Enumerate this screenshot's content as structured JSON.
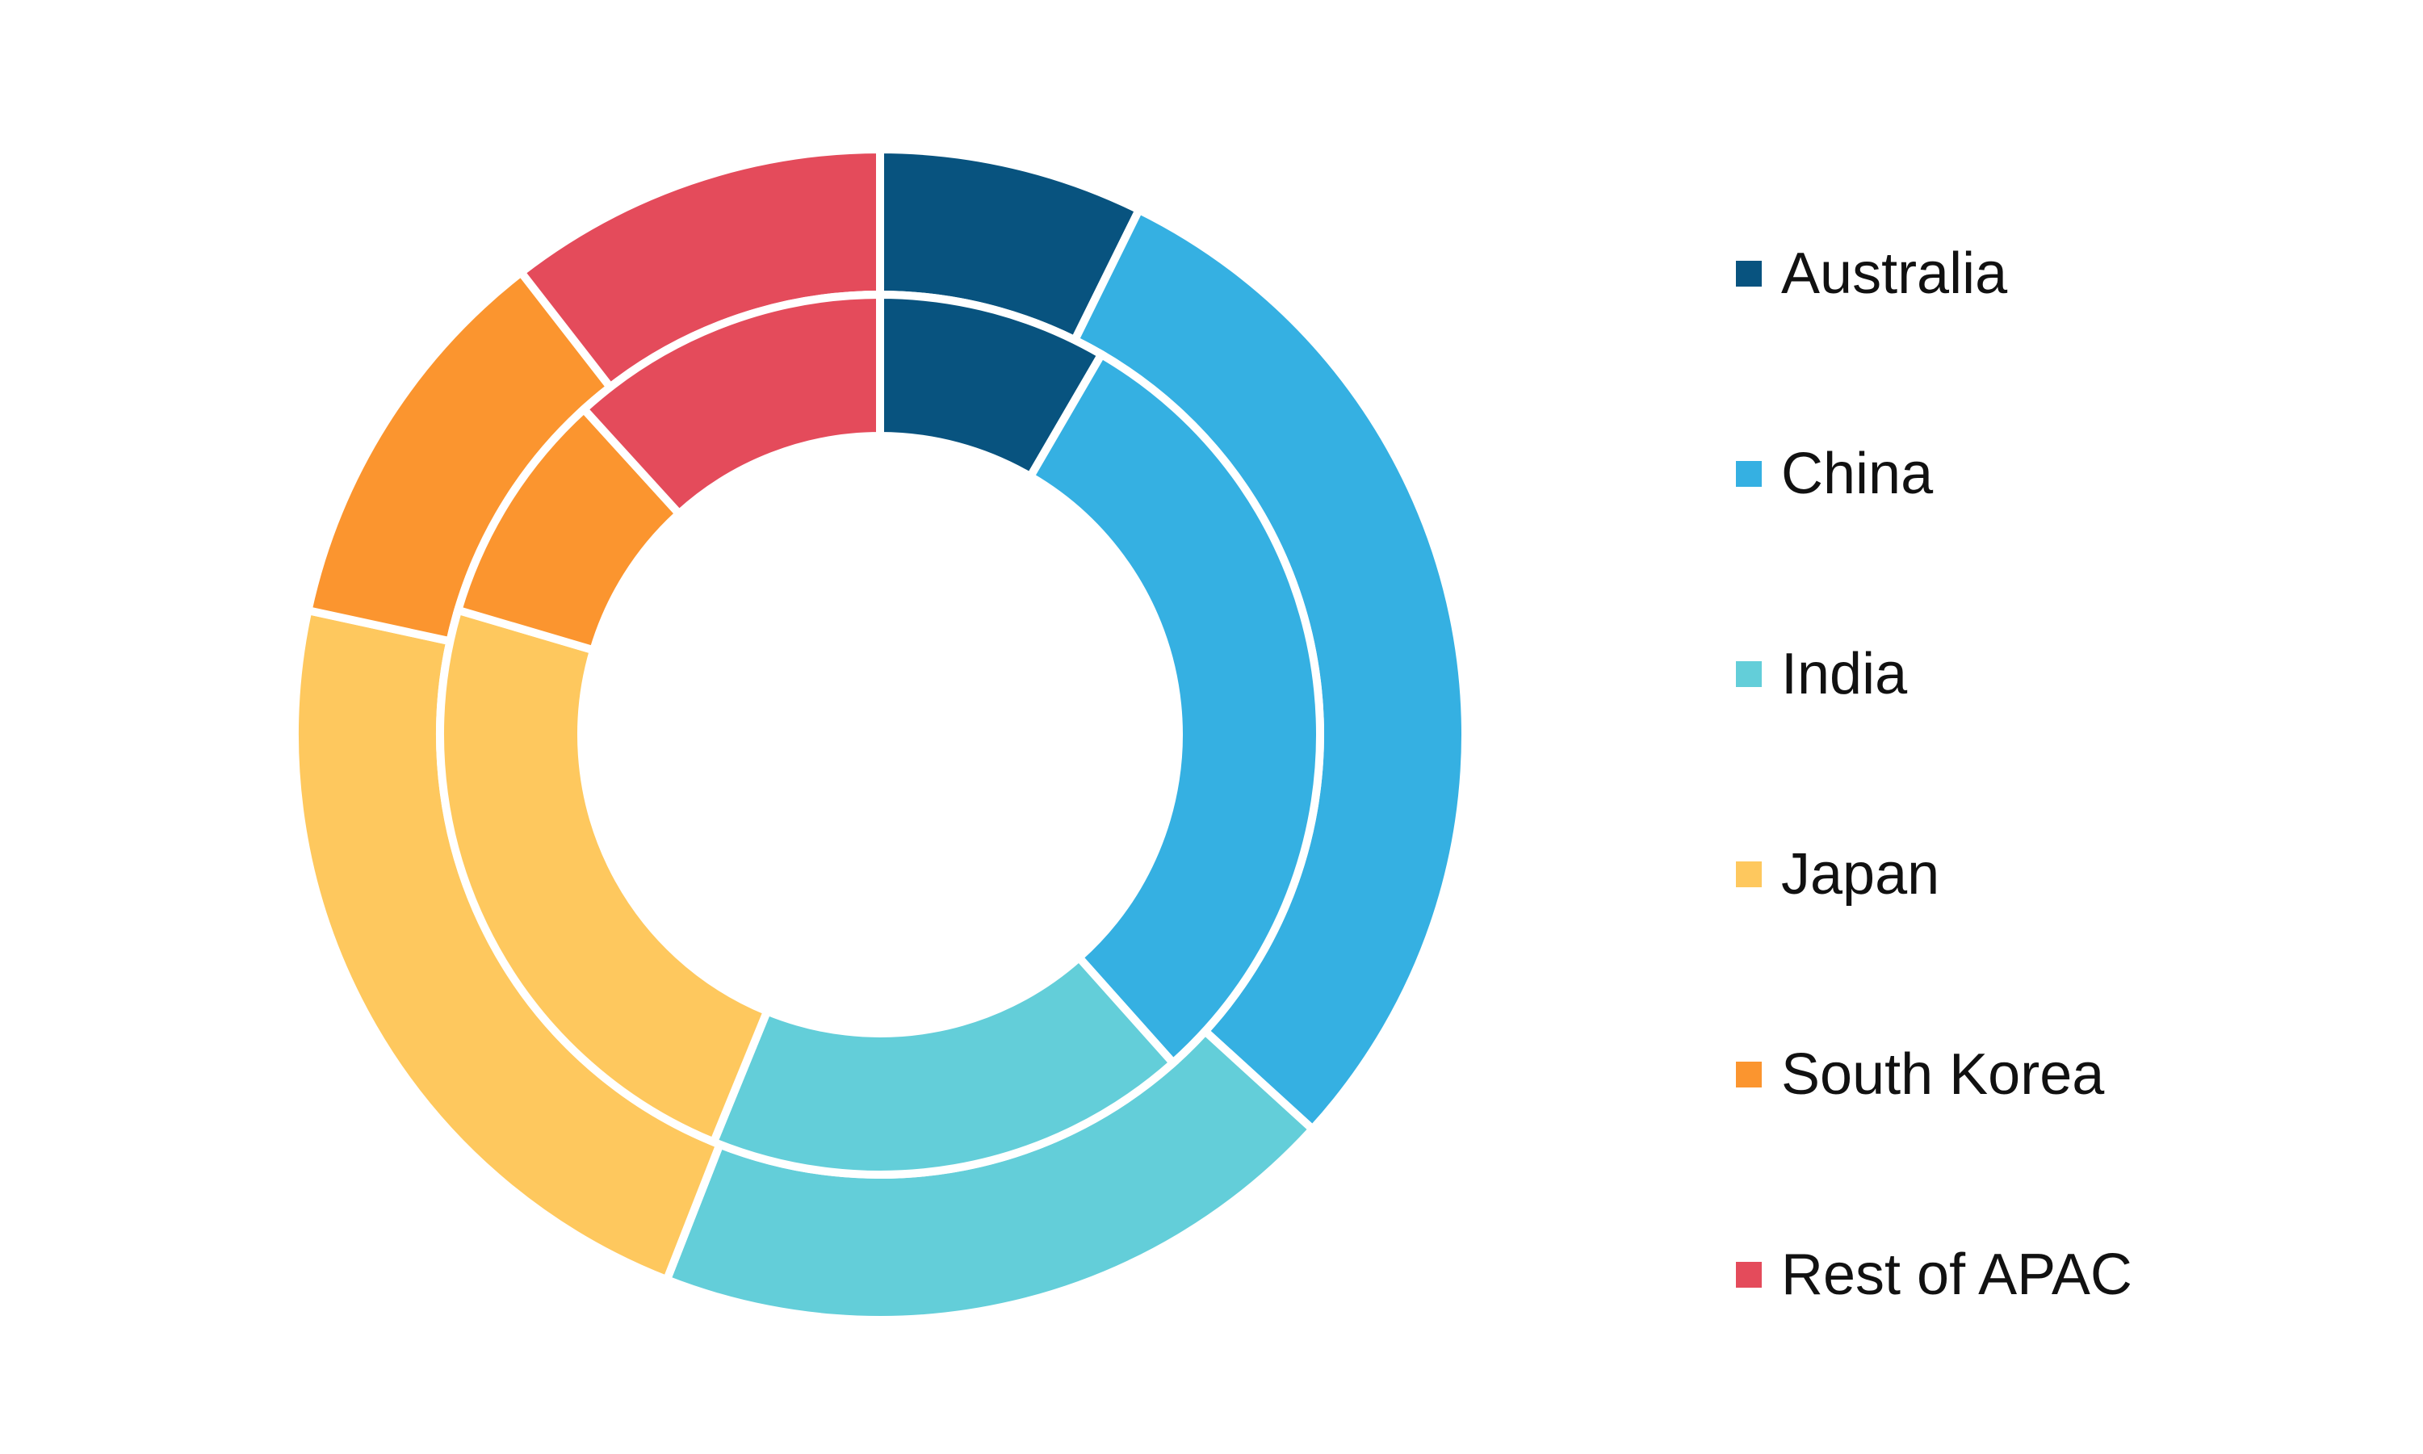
{
  "chart_data": {
    "type": "donut",
    "categories": [
      "Australia",
      "China",
      "India",
      "Japan",
      "South Korea",
      "Rest of APAC"
    ],
    "colors": [
      "#08537f",
      "#35b0e2",
      "#63ced9",
      "#fec85e",
      "#fb952f",
      "#e44b5b"
    ],
    "series": [
      {
        "ring": "outer",
        "values": [
          7.5,
          30.3,
          19.7,
          23.1,
          11.4,
          10.8
        ]
      },
      {
        "ring": "inner",
        "values": [
          8.5,
          30.4,
          18.0,
          23.7,
          8.8,
          11.9
        ]
      }
    ],
    "legend_position": "right"
  }
}
